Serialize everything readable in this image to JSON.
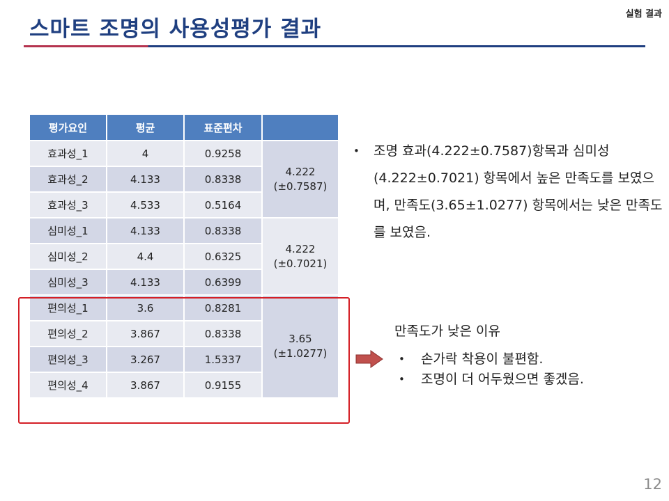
{
  "slide": {
    "section_label": "실험 결과",
    "title": "스마트 조명의 사용성평가 결과",
    "page_number": "12"
  },
  "table": {
    "headers": [
      "평가요인",
      "평균",
      "표준편차",
      ""
    ],
    "rows": [
      {
        "factor": "효과성_1",
        "mean": "4",
        "sd": "0.9258"
      },
      {
        "factor": "효과성_2",
        "mean": "4.133",
        "sd": "0.8338"
      },
      {
        "factor": "효과성_3",
        "mean": "4.533",
        "sd": "0.5164"
      },
      {
        "factor": "심미성_1",
        "mean": "4.133",
        "sd": "0.8338"
      },
      {
        "factor": "심미성_2",
        "mean": "4.4",
        "sd": "0.6325"
      },
      {
        "factor": "심미성_3",
        "mean": "4.133",
        "sd": "0.6399"
      },
      {
        "factor": "편의성_1",
        "mean": "3.6",
        "sd": "0.8281"
      },
      {
        "factor": "편의성_2",
        "mean": "3.867",
        "sd": "0.8338"
      },
      {
        "factor": "편의성_3",
        "mean": "3.267",
        "sd": "1.5337"
      },
      {
        "factor": "편의성_4",
        "mean": "3.867",
        "sd": "0.9155"
      }
    ],
    "groups": [
      {
        "mean": "4.222",
        "sd": "(±0.7587)"
      },
      {
        "mean": "4.222",
        "sd": "(±0.7021)"
      },
      {
        "mean": "3.65",
        "sd": "(±1.0277)"
      }
    ]
  },
  "summary": {
    "bullet": "•",
    "text": "조명 효과(4.222±0.7587)항목과 심미성(4.222±0.7021) 항목에서 높은 만족도를 보였으며, 만족도(3.65±1.0277) 항목에서는 낮은 만족도를 보였음."
  },
  "reasons": {
    "title": "만족도가 낮은 이유",
    "items": [
      "손가락 착용이 불편함.",
      "조명이 더 어두웠으면 좋겠음."
    ]
  },
  "colors": {
    "title": "#1f3f80",
    "header_fill": "#4f7fbf",
    "highlight_border": "#d41f26",
    "arrow": "#c0504d"
  }
}
